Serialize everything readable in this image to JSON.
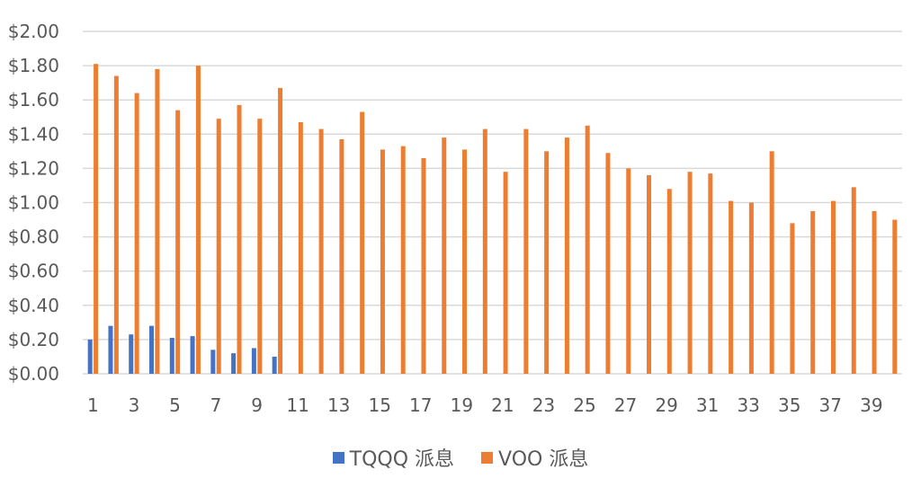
{
  "chart_data": {
    "type": "bar",
    "title": "",
    "xlabel": "",
    "ylabel": "",
    "ylim": [
      0,
      2.0
    ],
    "y_tick_labels": [
      "$0.00",
      "$0.20",
      "$0.40",
      "$0.60",
      "$0.80",
      "$1.00",
      "$1.20",
      "$1.40",
      "$1.60",
      "$1.80",
      "$2.00"
    ],
    "x_tick_labels": [
      "1",
      "3",
      "5",
      "7",
      "9",
      "11",
      "13",
      "15",
      "17",
      "19",
      "21",
      "23",
      "25",
      "27",
      "29",
      "31",
      "33",
      "35",
      "37",
      "39"
    ],
    "grid": true,
    "legend_position": "bottom",
    "categories": [
      1,
      2,
      3,
      4,
      5,
      6,
      7,
      8,
      9,
      10,
      11,
      12,
      13,
      14,
      15,
      16,
      17,
      18,
      19,
      20,
      21,
      22,
      23,
      24,
      25,
      26,
      27,
      28,
      29,
      30,
      31,
      32,
      33,
      34,
      35,
      36,
      37,
      38,
      39,
      40
    ],
    "series": [
      {
        "name": "TQQQ 派息",
        "color": "#4472C4",
        "values": [
          0.2,
          0.28,
          0.23,
          0.28,
          0.21,
          0.22,
          0.14,
          0.12,
          0.15,
          0.1,
          null,
          null,
          null,
          null,
          null,
          null,
          null,
          null,
          null,
          null,
          null,
          null,
          null,
          null,
          null,
          null,
          null,
          null,
          null,
          null,
          null,
          null,
          null,
          null,
          null,
          null,
          null,
          null,
          null,
          null
        ]
      },
      {
        "name": "VOO 派息",
        "color": "#ED7D31",
        "values": [
          1.81,
          1.74,
          1.64,
          1.78,
          1.54,
          1.8,
          1.49,
          1.57,
          1.49,
          1.67,
          1.47,
          1.43,
          1.37,
          1.53,
          1.31,
          1.33,
          1.26,
          1.38,
          1.31,
          1.43,
          1.18,
          1.43,
          1.3,
          1.38,
          1.45,
          1.29,
          1.2,
          1.16,
          1.08,
          1.18,
          1.17,
          1.01,
          1.0,
          1.3,
          0.88,
          0.95,
          1.01,
          1.09,
          0.95,
          0.9
        ]
      }
    ]
  }
}
